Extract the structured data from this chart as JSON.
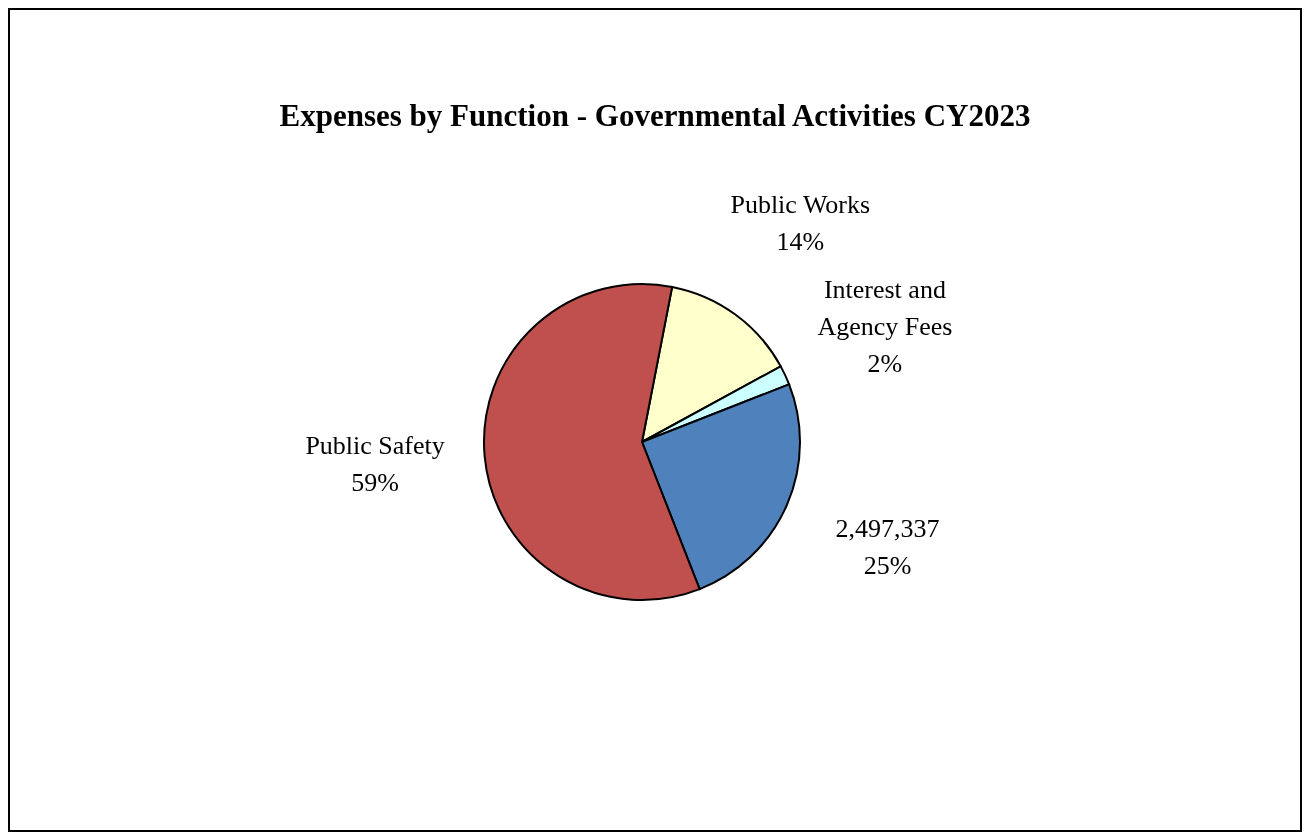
{
  "chart_data": {
    "type": "pie",
    "title": "Expenses by Function - Governmental Activities CY2023",
    "categories": [
      "Public Works",
      "Interest and Agency Fees",
      "2,497,337",
      "Public Safety"
    ],
    "values": [
      14,
      2,
      25,
      59
    ],
    "colors": [
      "#ffffcc",
      "#ccffff",
      "#4f81bd",
      "#c0504d"
    ],
    "value_labels": [
      "14%",
      "2%",
      "25%",
      "59%"
    ]
  }
}
